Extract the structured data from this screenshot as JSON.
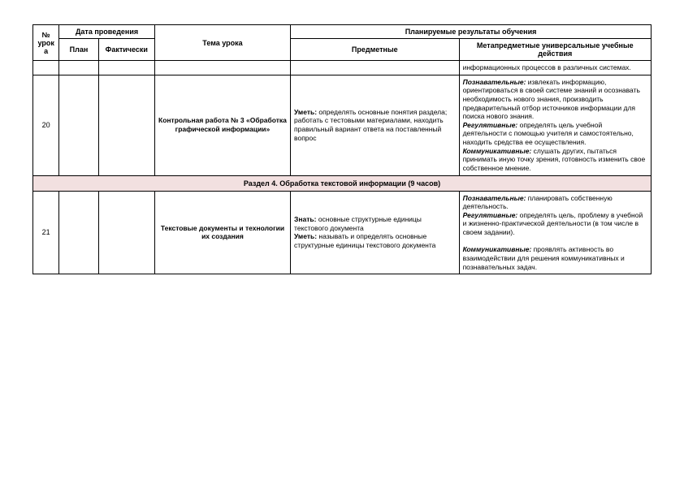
{
  "header": {
    "num": "№ урок а",
    "date_group": "Дата проведения",
    "plan": "План",
    "fact": "Фактически",
    "topic": "Тема урока",
    "results_group": "Планируемые результаты обучения",
    "subject": "Предметные",
    "meta": "Метапредметные универсальные учебные действия"
  },
  "rows": {
    "carryover": {
      "meta": "информационных процессов в различных системах."
    },
    "r20": {
      "num": "20",
      "topic": "Контрольная работа № 3 «Обработка графической информации»",
      "subject_label": "Уметь:",
      "subject_text": " определять основные понятия раздела; работать с тестовыми материалами, находить правильный вариант ответа на поставленный вопрос",
      "meta_poz_label": "Познавательные:",
      "meta_poz_text": " извлекать информацию, ориентироваться в своей системе знаний и осознавать необходимость нового знания, производить предварительный отбор источников информации для поиска нового знания.",
      "meta_reg_label": "Регулятивные:",
      "meta_reg_text": " определять  цель учебной деятельности с помощью учителя и самостоятельно, находить средства ее осуществления.",
      "meta_kom_label": "Коммуникативные:",
      "meta_kom_text": " слушать других, пытаться  принимать иную точку зрения, готовность изменить свое собственное мнение."
    },
    "section": {
      "title": "Раздел 4.  Обработка текстовой информации  (9 часов)"
    },
    "r21": {
      "num": "21",
      "topic": "Текстовые документы и технологии их создания",
      "subject_z_label": "Знать:",
      "subject_z_text": "  основные структурные единицы текстового документа",
      "subject_u_label": "Уметь:",
      "subject_u_text": "  называть и определять основные структурные единицы текстового документа",
      "meta_poz_label": "Познавательные:",
      "meta_poz_text": " планировать собственную деятельность.",
      "meta_reg_label": "Регулятивные:",
      "meta_reg_text": " определять цель, проблему в учебной и жизненно-практической деятельности (в том числе в своем задании).",
      "meta_kom_label": "Коммуникативные:",
      "meta_kom_text": " проявлять активность во взаимодействии для решения коммуникативных и познавательных задач."
    }
  }
}
